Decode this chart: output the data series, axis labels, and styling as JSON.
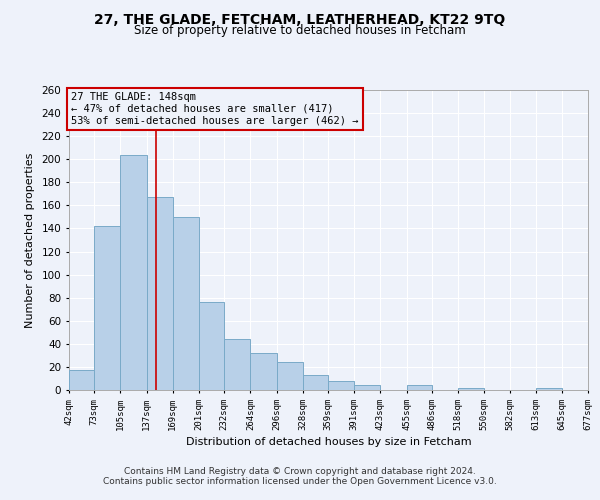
{
  "title": "27, THE GLADE, FETCHAM, LEATHERHEAD, KT22 9TQ",
  "subtitle": "Size of property relative to detached houses in Fetcham",
  "xlabel": "Distribution of detached houses by size in Fetcham",
  "ylabel": "Number of detached properties",
  "bar_color": "#b8d0e8",
  "bar_edge_color": "#7aaac8",
  "background_color": "#eef2fa",
  "grid_color": "#ffffff",
  "bin_edges": [
    42,
    73,
    105,
    137,
    169,
    201,
    232,
    264,
    296,
    328,
    359,
    391,
    423,
    455,
    486,
    518,
    550,
    582,
    613,
    645,
    677
  ],
  "bar_heights": [
    17,
    142,
    204,
    167,
    150,
    76,
    44,
    32,
    24,
    13,
    8,
    4,
    0,
    4,
    0,
    2,
    0,
    0,
    2,
    0
  ],
  "tick_labels": [
    "42sqm",
    "73sqm",
    "105sqm",
    "137sqm",
    "169sqm",
    "201sqm",
    "232sqm",
    "264sqm",
    "296sqm",
    "328sqm",
    "359sqm",
    "391sqm",
    "423sqm",
    "455sqm",
    "486sqm",
    "518sqm",
    "550sqm",
    "582sqm",
    "613sqm",
    "645sqm",
    "677sqm"
  ],
  "vline_x": 148,
  "vline_color": "#cc0000",
  "annotation_title": "27 THE GLADE: 148sqm",
  "annotation_line1": "← 47% of detached houses are smaller (417)",
  "annotation_line2": "53% of semi-detached houses are larger (462) →",
  "annotation_box_color": "#cc0000",
  "ylim": [
    0,
    260
  ],
  "yticks": [
    0,
    20,
    40,
    60,
    80,
    100,
    120,
    140,
    160,
    180,
    200,
    220,
    240,
    260
  ],
  "footer_line1": "Contains HM Land Registry data © Crown copyright and database right 2024.",
  "footer_line2": "Contains public sector information licensed under the Open Government Licence v3.0."
}
